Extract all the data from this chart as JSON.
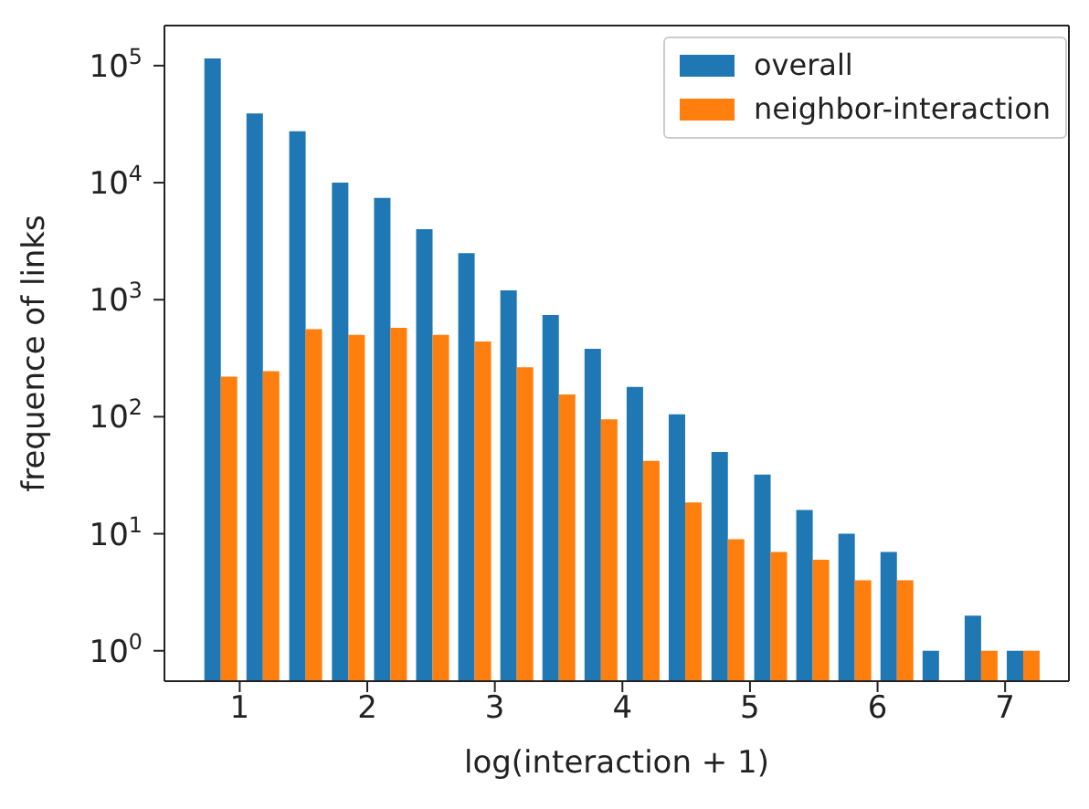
{
  "chart_data": {
    "type": "histogram",
    "xlabel": "log(interaction + 1)",
    "ylabel": "frequence of links",
    "bins": [
      0.69,
      1.02,
      1.35,
      1.69,
      2.02,
      2.35,
      2.68,
      3.01,
      3.34,
      3.67,
      4.0,
      4.33,
      4.66,
      5.0,
      5.33,
      5.66,
      5.99,
      6.32,
      6.65,
      6.98,
      7.31
    ],
    "series": [
      {
        "name": "overall",
        "color": "#1f77b4",
        "values": [
          115000,
          39000,
          27500,
          10000,
          7400,
          4000,
          2500,
          1200,
          740,
          380,
          180,
          105,
          50,
          32,
          16,
          10,
          7,
          1,
          2,
          1
        ]
      },
      {
        "name": "neighbor-interaction",
        "color": "#ff7f0e",
        "values": [
          220,
          245,
          560,
          500,
          575,
          500,
          440,
          265,
          155,
          95,
          42,
          18.5,
          9,
          7,
          6,
          4,
          4,
          null,
          1,
          1
        ]
      }
    ],
    "log": "y",
    "xlim": [
      0.41,
      7.5
    ],
    "xticks": [
      1,
      2,
      3,
      4,
      5,
      6,
      7
    ],
    "ylim": [
      0.55,
      220000
    ],
    "yticks": [
      {
        "value": 1,
        "label": "10$^{0}$"
      },
      {
        "value": 10,
        "label": "10$^{1}$"
      },
      {
        "value": 100,
        "label": "10$^{2}$"
      },
      {
        "value": 1000,
        "label": "10$^{3}$"
      },
      {
        "value": 10000,
        "label": "10$^{4}$"
      },
      {
        "value": 100000,
        "label": "10$^{5}$"
      }
    ],
    "grid": false,
    "legend": "top right"
  }
}
